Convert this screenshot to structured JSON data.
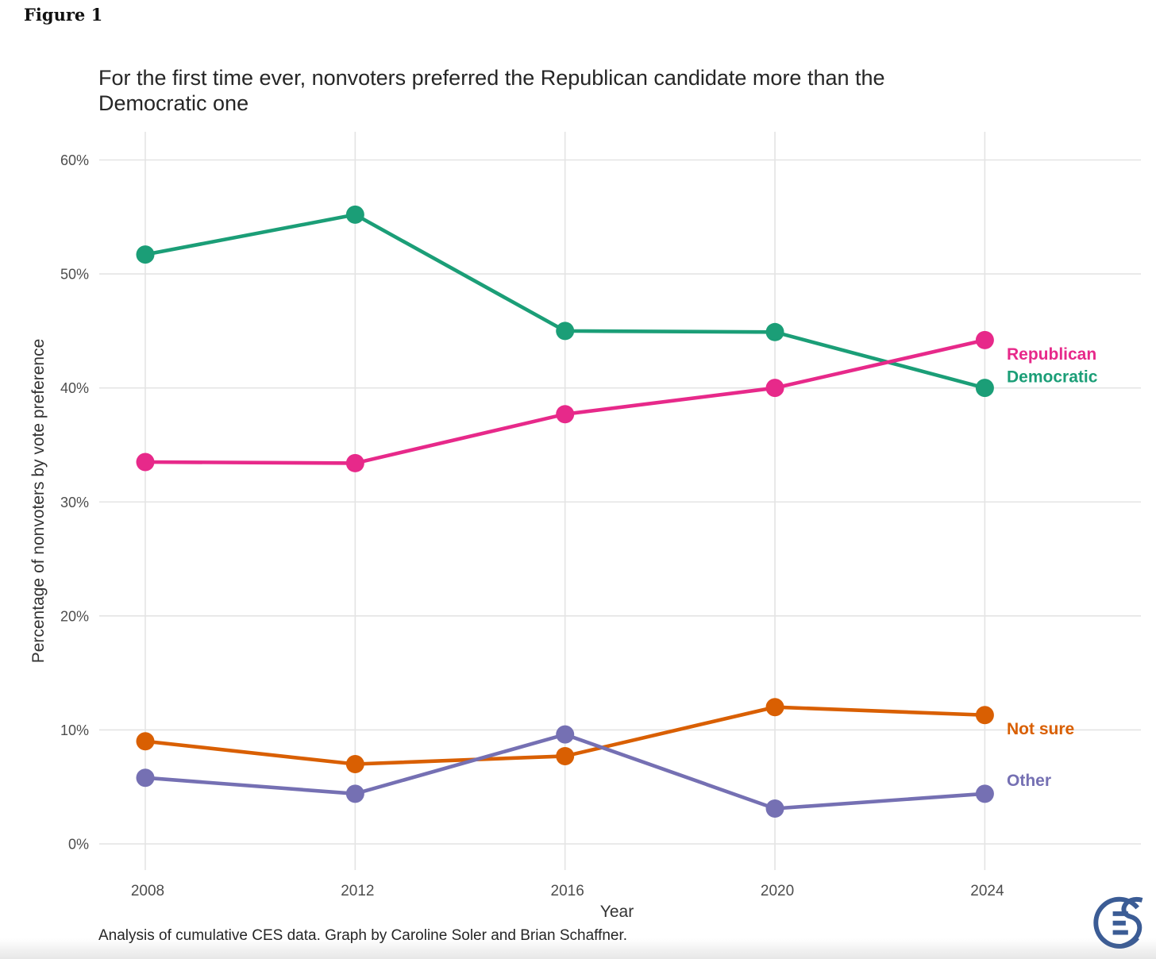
{
  "figure_label": "Figure 1",
  "header": {
    "title_line1": "For the first time ever, nonvoters preferred the Republican candidate more than the",
    "title_line2": "Democratic one"
  },
  "caption": "Analysis of cumulative CES data. Graph by Caroline Soler and Brian Schaffner.",
  "logo": {
    "name": "CES logo",
    "color": "#3b5c95"
  },
  "chart_data": {
    "type": "line",
    "title": "For the first time ever, nonvoters preferred the Republican candidate more than the Democratic one",
    "xlabel": "Year",
    "ylabel": "Percentage of nonvoters by vote preference",
    "categories": [
      "2008",
      "2012",
      "2016",
      "2020",
      "2024"
    ],
    "yticks": [
      0,
      10,
      20,
      30,
      40,
      50,
      60
    ],
    "ytick_suffix": "%",
    "ylim": [
      0,
      60
    ],
    "grid": true,
    "gridline_color": "#e4e4e4",
    "axis_text_color": "#4d4d4d",
    "axis_title_color": "#333333",
    "legend_position": "inline-right",
    "series": [
      {
        "name": "Democratic",
        "color": "#1b9e77",
        "values": [
          51.7,
          55.2,
          45.0,
          44.9,
          40.0
        ],
        "label_at": 40.5
      },
      {
        "name": "Not sure",
        "color": "#d95f02",
        "values": [
          9.0,
          7.0,
          7.7,
          12.0,
          11.3
        ],
        "label_at": 9.6
      },
      {
        "name": "Other",
        "color": "#7570b3",
        "values": [
          5.8,
          4.4,
          9.6,
          3.1,
          4.4
        ],
        "label_at": 5.1
      },
      {
        "name": "Republican",
        "color": "#e7298a",
        "values": [
          33.5,
          33.4,
          37.7,
          40.0,
          44.2
        ],
        "label_at": 42.5
      }
    ]
  }
}
